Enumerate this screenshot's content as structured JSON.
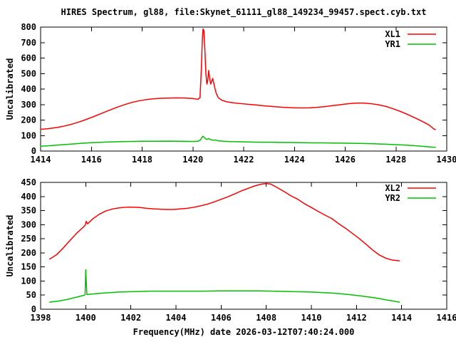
{
  "title": "HIRES Spectrum, gl88, file:Skynet_61111_gl88_149234_99457.spect.cyb.txt",
  "xlabel": "Frequency(MHz) date 2026-03-12T07:40:24.000",
  "colors": {
    "xl_series": "#ff0000",
    "yr_series": "#00c000",
    "axis": "#000000",
    "background": "#ffffff"
  },
  "chart_data": [
    {
      "type": "line",
      "ylabel": "Uncalibrated",
      "xlim": [
        1414,
        1430
      ],
      "ylim": [
        0,
        800
      ],
      "xticks": [
        1414,
        1416,
        1418,
        1420,
        1422,
        1424,
        1426,
        1428,
        1430
      ],
      "yticks": [
        0,
        100,
        200,
        300,
        400,
        500,
        600,
        700,
        800
      ],
      "grid": false,
      "legend_position": "top-right-inside",
      "series": [
        {
          "name": "XL1",
          "color": "#ff0000",
          "points": [
            [
              1414.0,
              140
            ],
            [
              1414.3,
              144
            ],
            [
              1414.6,
              151
            ],
            [
              1414.9,
              160
            ],
            [
              1415.2,
              172
            ],
            [
              1415.5,
              187
            ],
            [
              1415.8,
              204
            ],
            [
              1416.1,
              223
            ],
            [
              1416.4,
              243
            ],
            [
              1416.7,
              263
            ],
            [
              1417.0,
              282
            ],
            [
              1417.3,
              299
            ],
            [
              1417.6,
              314
            ],
            [
              1417.9,
              325
            ],
            [
              1418.2,
              333
            ],
            [
              1418.5,
              338
            ],
            [
              1418.8,
              341
            ],
            [
              1419.1,
              342
            ],
            [
              1419.4,
              343
            ],
            [
              1419.7,
              342
            ],
            [
              1420.0,
              339
            ],
            [
              1420.1,
              336
            ],
            [
              1420.2,
              334
            ],
            [
              1420.28,
              345
            ],
            [
              1420.33,
              520
            ],
            [
              1420.37,
              720
            ],
            [
              1420.4,
              788
            ],
            [
              1420.43,
              778
            ],
            [
              1420.47,
              660
            ],
            [
              1420.51,
              500
            ],
            [
              1420.55,
              432
            ],
            [
              1420.58,
              450
            ],
            [
              1420.62,
              520
            ],
            [
              1420.66,
              470
            ],
            [
              1420.7,
              432
            ],
            [
              1420.74,
              450
            ],
            [
              1420.78,
              468
            ],
            [
              1420.82,
              440
            ],
            [
              1420.87,
              402
            ],
            [
              1420.92,
              372
            ],
            [
              1421.0,
              344
            ],
            [
              1421.15,
              327
            ],
            [
              1421.35,
              317
            ],
            [
              1421.6,
              311
            ],
            [
              1421.9,
              306
            ],
            [
              1422.2,
              301
            ],
            [
              1422.5,
              297
            ],
            [
              1422.8,
              292
            ],
            [
              1423.1,
              288
            ],
            [
              1423.4,
              284
            ],
            [
              1423.7,
              281
            ],
            [
              1424.0,
              279
            ],
            [
              1424.3,
              278
            ],
            [
              1424.6,
              279
            ],
            [
              1424.9,
              282
            ],
            [
              1425.2,
              287
            ],
            [
              1425.5,
              293
            ],
            [
              1425.8,
              299
            ],
            [
              1426.1,
              305
            ],
            [
              1426.4,
              309
            ],
            [
              1426.7,
              310
            ],
            [
              1427.0,
              306
            ],
            [
              1427.3,
              299
            ],
            [
              1427.6,
              288
            ],
            [
              1427.9,
              272
            ],
            [
              1428.2,
              254
            ],
            [
              1428.5,
              233
            ],
            [
              1428.8,
              210
            ],
            [
              1429.1,
              186
            ],
            [
              1429.3,
              168
            ],
            [
              1429.45,
              148
            ],
            [
              1429.5,
              141
            ],
            [
              1429.55,
              139
            ]
          ]
        },
        {
          "name": "YR1",
          "color": "#00c000",
          "points": [
            [
              1414.0,
              31
            ],
            [
              1414.4,
              35
            ],
            [
              1414.8,
              40
            ],
            [
              1415.2,
              45
            ],
            [
              1415.6,
              50
            ],
            [
              1416.0,
              54
            ],
            [
              1416.4,
              57
            ],
            [
              1416.8,
              59
            ],
            [
              1417.2,
              61
            ],
            [
              1417.6,
              62
            ],
            [
              1418.0,
              63
            ],
            [
              1418.5,
              63
            ],
            [
              1419.0,
              64
            ],
            [
              1419.5,
              63
            ],
            [
              1420.0,
              62
            ],
            [
              1420.2,
              63
            ],
            [
              1420.3,
              72
            ],
            [
              1420.38,
              95
            ],
            [
              1420.44,
              90
            ],
            [
              1420.5,
              78
            ],
            [
              1420.56,
              75
            ],
            [
              1420.62,
              81
            ],
            [
              1420.7,
              73
            ],
            [
              1420.8,
              70
            ],
            [
              1420.9,
              71
            ],
            [
              1421.0,
              66
            ],
            [
              1421.2,
              63
            ],
            [
              1421.5,
              61
            ],
            [
              1421.9,
              60
            ],
            [
              1422.3,
              58
            ],
            [
              1422.7,
              57
            ],
            [
              1423.1,
              57
            ],
            [
              1423.5,
              56
            ],
            [
              1423.9,
              55
            ],
            [
              1424.3,
              54
            ],
            [
              1424.7,
              53
            ],
            [
              1425.1,
              53
            ],
            [
              1425.5,
              52
            ],
            [
              1425.9,
              51
            ],
            [
              1426.3,
              50
            ],
            [
              1426.7,
              49
            ],
            [
              1427.1,
              47
            ],
            [
              1427.5,
              45
            ],
            [
              1427.9,
              42
            ],
            [
              1428.3,
              39
            ],
            [
              1428.7,
              35
            ],
            [
              1429.0,
              31
            ],
            [
              1429.3,
              27
            ],
            [
              1429.55,
              24
            ]
          ]
        }
      ]
    },
    {
      "type": "line",
      "ylabel": "Uncalibrated",
      "xlim": [
        1398,
        1416
      ],
      "ylim": [
        0,
        450
      ],
      "xticks": [
        1398,
        1400,
        1402,
        1404,
        1406,
        1408,
        1410,
        1412,
        1414,
        1416
      ],
      "yticks": [
        0,
        50,
        100,
        150,
        200,
        250,
        300,
        350,
        400,
        450
      ],
      "grid": false,
      "legend_position": "top-right-inside",
      "series": [
        {
          "name": "XL2",
          "color": "#ff0000",
          "points": [
            [
              1398.4,
              178
            ],
            [
              1398.7,
              193
            ],
            [
              1399.0,
              217
            ],
            [
              1399.3,
              244
            ],
            [
              1399.6,
              270
            ],
            [
              1399.9,
              292
            ],
            [
              1399.98,
              299
            ],
            [
              1400.02,
              312
            ],
            [
              1400.08,
              303
            ],
            [
              1400.3,
              320
            ],
            [
              1400.6,
              337
            ],
            [
              1400.9,
              349
            ],
            [
              1401.2,
              356
            ],
            [
              1401.5,
              360
            ],
            [
              1401.8,
              362
            ],
            [
              1402.1,
              362
            ],
            [
              1402.4,
              361
            ],
            [
              1402.7,
              358
            ],
            [
              1403.0,
              356
            ],
            [
              1403.3,
              355
            ],
            [
              1403.6,
              354
            ],
            [
              1403.9,
              354
            ],
            [
              1404.2,
              356
            ],
            [
              1404.5,
              358
            ],
            [
              1404.8,
              362
            ],
            [
              1405.1,
              367
            ],
            [
              1405.4,
              373
            ],
            [
              1405.7,
              381
            ],
            [
              1406.0,
              390
            ],
            [
              1406.3,
              399
            ],
            [
              1406.6,
              409
            ],
            [
              1406.9,
              420
            ],
            [
              1407.2,
              429
            ],
            [
              1407.5,
              438
            ],
            [
              1407.8,
              444
            ],
            [
              1408.0,
              446
            ],
            [
              1408.2,
              444
            ],
            [
              1408.5,
              431
            ],
            [
              1408.8,
              417
            ],
            [
              1409.1,
              402
            ],
            [
              1409.4,
              390
            ],
            [
              1409.7,
              374
            ],
            [
              1410.0,
              361
            ],
            [
              1410.3,
              347
            ],
            [
              1410.6,
              334
            ],
            [
              1410.9,
              322
            ],
            [
              1411.2,
              304
            ],
            [
              1411.5,
              288
            ],
            [
              1411.8,
              270
            ],
            [
              1412.1,
              252
            ],
            [
              1412.4,
              232
            ],
            [
              1412.7,
              211
            ],
            [
              1413.0,
              193
            ],
            [
              1413.3,
              181
            ],
            [
              1413.6,
              174
            ],
            [
              1413.9,
              172
            ]
          ]
        },
        {
          "name": "YR2",
          "color": "#00c000",
          "points": [
            [
              1398.4,
              25
            ],
            [
              1398.8,
              29
            ],
            [
              1399.2,
              35
            ],
            [
              1399.6,
              43
            ],
            [
              1399.9,
              49
            ],
            [
              1399.97,
              51
            ],
            [
              1400.0,
              140
            ],
            [
              1400.05,
              52
            ],
            [
              1400.3,
              54
            ],
            [
              1400.7,
              57
            ],
            [
              1401.1,
              59
            ],
            [
              1401.5,
              61
            ],
            [
              1401.9,
              62
            ],
            [
              1402.4,
              63
            ],
            [
              1402.9,
              64
            ],
            [
              1403.5,
              64
            ],
            [
              1404.1,
              64
            ],
            [
              1404.7,
              64
            ],
            [
              1405.3,
              64
            ],
            [
              1405.9,
              65
            ],
            [
              1406.5,
              65
            ],
            [
              1407.1,
              65
            ],
            [
              1407.7,
              65
            ],
            [
              1408.3,
              64
            ],
            [
              1408.9,
              63
            ],
            [
              1409.5,
              62
            ],
            [
              1410.0,
              61
            ],
            [
              1410.5,
              59
            ],
            [
              1411.0,
              57
            ],
            [
              1411.4,
              54
            ],
            [
              1411.8,
              51
            ],
            [
              1412.2,
              47
            ],
            [
              1412.6,
              43
            ],
            [
              1413.0,
              38
            ],
            [
              1413.4,
              32
            ],
            [
              1413.7,
              28
            ],
            [
              1413.9,
              25
            ]
          ]
        }
      ]
    }
  ]
}
